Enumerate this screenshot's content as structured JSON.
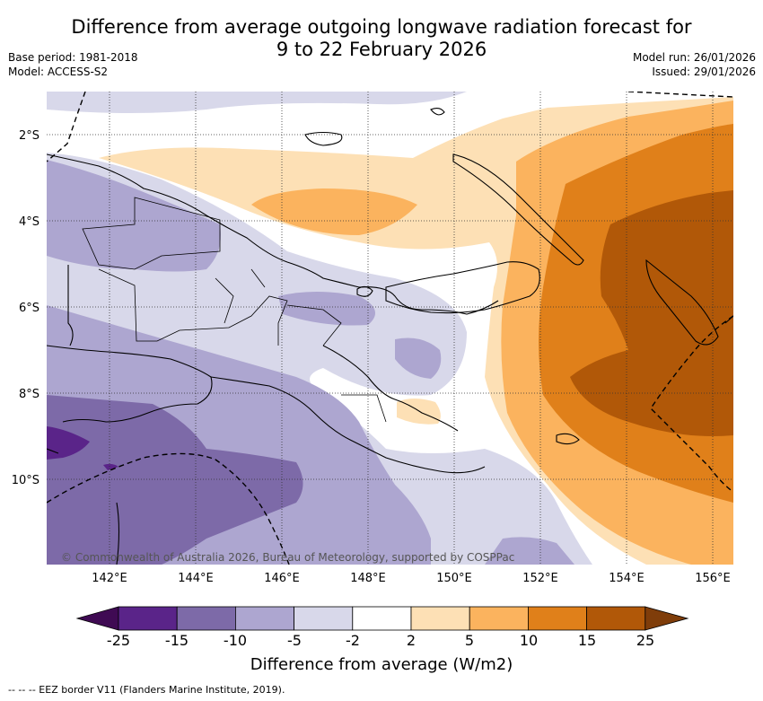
{
  "title_line1": "Difference from average outgoing longwave radiation forecast for",
  "title_line2": "9 to 22 February 2026",
  "base_period": "Base period: 1981-2018",
  "model": "Model: ACCESS-S2",
  "model_run": "Model run: 26/01/2026",
  "issued": "Issued: 29/01/2026",
  "latitudes": [
    "2°S",
    "4°S",
    "6°S",
    "8°S",
    "10°S"
  ],
  "longitudes": [
    "142°E",
    "144°E",
    "146°E",
    "148°E",
    "150°E",
    "152°E",
    "154°E",
    "156°E"
  ],
  "copyright": "© Commonwealth of Australia 2026, Bureau of Meteorology, supported by COSPPac",
  "colorbar": {
    "ticks": [
      "-25",
      "-15",
      "-10",
      "-5",
      "-2",
      "2",
      "5",
      "10",
      "15",
      "25"
    ],
    "title": "Difference from average (W/m2)",
    "colors": [
      "#3f0a53",
      "#5a2489",
      "#7d6aa8",
      "#ada6d0",
      "#d8d8ea",
      "#ffffff",
      "#fde0b5",
      "#fbb35e",
      "#e0801a",
      "#b15808",
      "#7f3d0a"
    ]
  },
  "eez_note": "-- -- -- EEZ border V11 (Flanders Marine Institute, 2019)."
}
